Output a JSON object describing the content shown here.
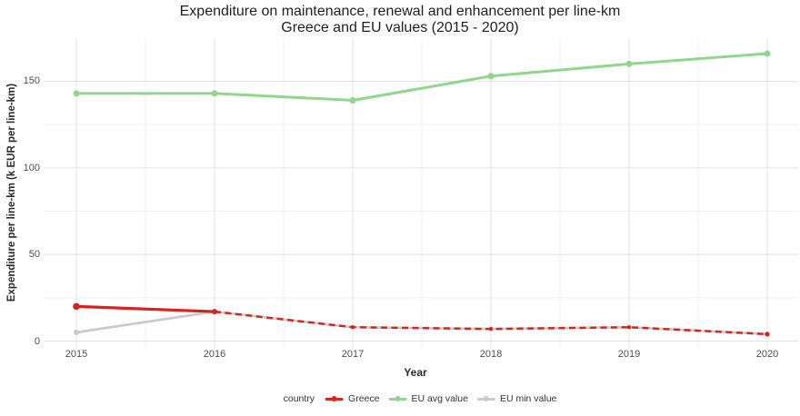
{
  "title": {
    "line1": "Expenditure on maintenance, renewal and enhancement per line-km",
    "line2": "Greece and EU values (2015 - 2020)"
  },
  "axes": {
    "x_label": "Year",
    "y_label": "Expenditure per line-km (k EUR per line-km)",
    "x_ticks": [
      "2015",
      "2016",
      "2017",
      "2018",
      "2019",
      "2020"
    ],
    "y_ticks": [
      "0",
      "50",
      "100",
      "150"
    ]
  },
  "legend": {
    "title": "country",
    "items": [
      {
        "label": "Greece",
        "color": "#d6231c"
      },
      {
        "label": "EU avg value",
        "color": "#90d68c"
      },
      {
        "label": "EU min value",
        "color": "#cbcbcb"
      }
    ]
  },
  "chart_data": {
    "type": "line",
    "title": "Expenditure on maintenance, renewal and enhancement per line-km — Greece and EU values (2015 - 2020)",
    "xlabel": "Year",
    "ylabel": "Expenditure per line-km (k EUR per line-km)",
    "x": [
      2015,
      2016,
      2017,
      2018,
      2019,
      2020
    ],
    "series": [
      {
        "name": "Greece",
        "color": "#d6231c",
        "values": [
          20,
          17,
          8,
          7,
          8,
          4
        ],
        "linetype": "solid 2015-2016, dashed 2016-2020",
        "markers": true
      },
      {
        "name": "EU avg value",
        "color": "#90d68c",
        "values": [
          143,
          143,
          139,
          153,
          160,
          166
        ],
        "linetype": "solid",
        "markers": true
      },
      {
        "name": "EU min value",
        "color": "#cbcbcb",
        "values": [
          5,
          17,
          8,
          7,
          8,
          4
        ],
        "linetype": "solid",
        "markers": true
      }
    ],
    "ylim": [
      -4,
      174
    ],
    "y_major_ticks": [
      0,
      50,
      100,
      150
    ],
    "y_minor_gridlines": [
      25,
      75,
      125
    ],
    "grid": true,
    "gridline_major_color": "#e3e3e3",
    "gridline_minor_color": "#f1f1f1",
    "legend_position": "bottom"
  }
}
